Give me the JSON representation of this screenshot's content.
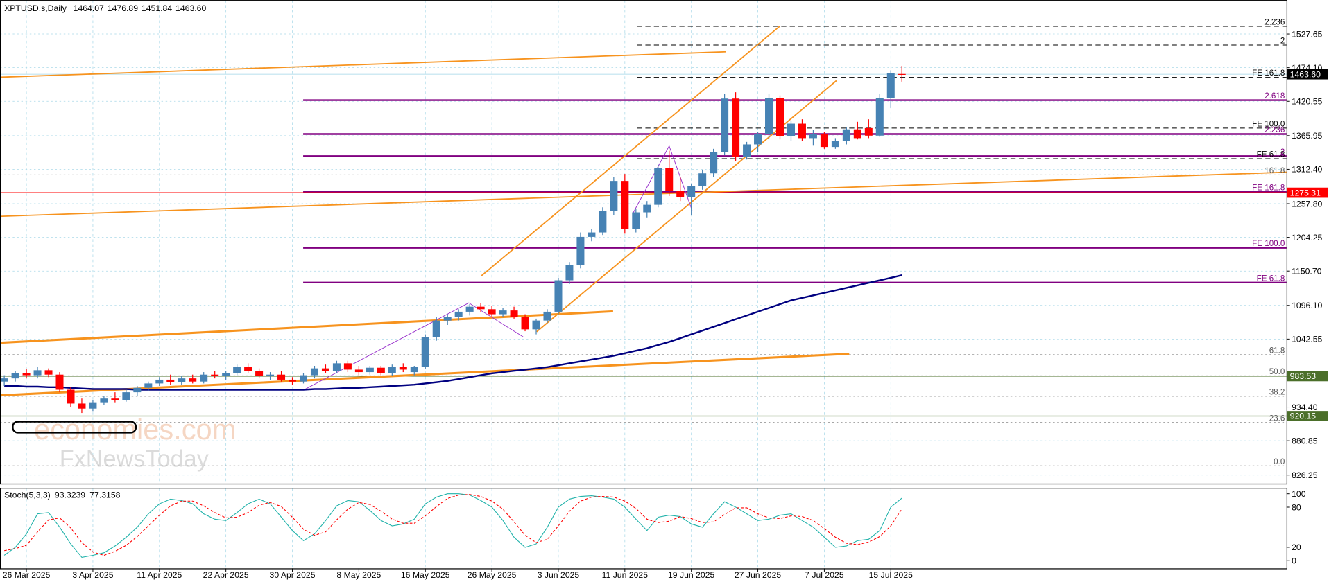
{
  "chart_data": {
    "type": "candlestick",
    "title": "XPTUSD.s,Daily",
    "categories": [
      null,
      null,
      "26 Mar 2025",
      null,
      null,
      null,
      null,
      null,
      "3 Apr 2025",
      null,
      null,
      null,
      null,
      null,
      "11 Apr 2025",
      null,
      null,
      null,
      null,
      null,
      "22 Apr 2025",
      null,
      null,
      null,
      null,
      null,
      "30 Apr 2025",
      null,
      null,
      null,
      null,
      null,
      "8 May 2025",
      null,
      null,
      null,
      null,
      null,
      "16 May 2025",
      null,
      null,
      null,
      null,
      null,
      "26 May 2025",
      null,
      null,
      null,
      null,
      null,
      "3 Jun 2025",
      null,
      null,
      null,
      null,
      null,
      "11 Jun 2025",
      null,
      null,
      null,
      null,
      null,
      "19 Jun 2025",
      null,
      null,
      null,
      null,
      null,
      "27 Jun 2025",
      null,
      null,
      null,
      null,
      null,
      "7 Jul 2025",
      null,
      null,
      null,
      null,
      null,
      "15 Jul 2025",
      null
    ],
    "candles": {
      "open": [
        975,
        980,
        988,
        985,
        993,
        986,
        962,
        940,
        932,
        942,
        948,
        945,
        958,
        965,
        972,
        978,
        974,
        980,
        975,
        986,
        984,
        988,
        998,
        992,
        984,
        986,
        978,
        975,
        985,
        996,
        992,
        1004,
        994,
        990,
        997,
        988,
        998,
        990,
        998,
        1046,
        1072,
        1078,
        1086,
        1094,
        1090,
        1082,
        1088,
        1078,
        1058,
        1072,
        1086,
        1136,
        1160,
        1205,
        1212,
        1246,
        1294,
        1218,
        1244,
        1256,
        1314,
        1278,
        1268,
        1286,
        1306,
        1340,
        1425,
        1332,
        1352,
        1368,
        1426,
        1365,
        1385,
        1362,
        1368,
        1348,
        1358,
        1376,
        1378,
        1366,
        1426,
        1464.07
      ],
      "high": [
        985,
        992,
        995,
        998,
        996,
        990,
        966,
        948,
        945,
        952,
        958,
        962,
        968,
        975,
        982,
        986,
        984,
        986,
        990,
        992,
        992,
        1002,
        1004,
        996,
        990,
        992,
        982,
        988,
        1000,
        1002,
        1008,
        1008,
        1000,
        1000,
        1000,
        1002,
        1004,
        1000,
        1050,
        1078,
        1082,
        1090,
        1098,
        1100,
        1095,
        1092,
        1094,
        1082,
        1075,
        1090,
        1140,
        1165,
        1212,
        1218,
        1252,
        1300,
        1305,
        1250,
        1262,
        1320,
        1342,
        1300,
        1290,
        1312,
        1345,
        1432,
        1435,
        1356,
        1372,
        1432,
        1430,
        1390,
        1392,
        1375,
        1372,
        1362,
        1380,
        1388,
        1392,
        1432,
        1470,
        1476.89
      ],
      "low": [
        968,
        975,
        980,
        980,
        982,
        958,
        935,
        925,
        928,
        938,
        942,
        943,
        952,
        960,
        968,
        970,
        970,
        972,
        972,
        980,
        978,
        985,
        988,
        980,
        978,
        975,
        970,
        972,
        980,
        988,
        988,
        990,
        985,
        986,
        985,
        984,
        990,
        985,
        995,
        1040,
        1065,
        1072,
        1080,
        1085,
        1078,
        1078,
        1075,
        1055,
        1050,
        1068,
        1082,
        1130,
        1155,
        1198,
        1208,
        1240,
        1210,
        1212,
        1236,
        1252,
        1270,
        1262,
        1240,
        1280,
        1300,
        1335,
        1325,
        1328,
        1340,
        1360,
        1360,
        1358,
        1358,
        1350,
        1345,
        1345,
        1352,
        1360,
        1362,
        1364,
        1410,
        1451.84
      ],
      "close": [
        980,
        988,
        985,
        993,
        986,
        962,
        940,
        932,
        942,
        948,
        945,
        958,
        965,
        972,
        978,
        974,
        980,
        975,
        986,
        984,
        988,
        998,
        992,
        984,
        986,
        978,
        975,
        985,
        996,
        992,
        1004,
        994,
        990,
        997,
        988,
        998,
        994,
        998,
        1046,
        1072,
        1078,
        1086,
        1094,
        1090,
        1082,
        1088,
        1078,
        1058,
        1072,
        1086,
        1136,
        1160,
        1205,
        1212,
        1246,
        1294,
        1218,
        1244,
        1256,
        1314,
        1278,
        1268,
        1286,
        1306,
        1340,
        1425,
        1332,
        1352,
        1368,
        1426,
        1365,
        1385,
        1362,
        1368,
        1348,
        1358,
        1376,
        1362,
        1366,
        1426,
        1466,
        {
          "value": 1463.6,
          "label": "1463.60"
        }
      ]
    },
    "up_color": "#4682b4",
    "down_color": "#ff0000",
    "ylim": [
      812.8,
      1581.6
    ],
    "yticks": [
      1527.65,
      {
        "value": 1474.1,
        "label": "1474.10"
      },
      1420.55,
      1365.95,
      {
        "value": 1312.4,
        "label": "1312.40"
      },
      {
        "value": 1257.8,
        "label": "1257.80"
      },
      1204.25,
      {
        "value": 1150.7,
        "label": "1150.70"
      },
      {
        "value": 1096.1,
        "label": "1096.10"
      },
      1042.55,
      {
        "value": 934.4,
        "label": "934.40"
      },
      880.85,
      826.25
    ],
    "grid": true,
    "ma": {
      "color": "#000080",
      "values": [
        968,
        968,
        967,
        967,
        966,
        966,
        965,
        964,
        963,
        963,
        963,
        963,
        962,
        962,
        962,
        962,
        962,
        962,
        962,
        962,
        962,
        962,
        962,
        962,
        962,
        962,
        962,
        962,
        963,
        963,
        964,
        965,
        965,
        966,
        967,
        968,
        969,
        970,
        972,
        974,
        976,
        979,
        982,
        985,
        988,
        990,
        992,
        994,
        996,
        998,
        1001,
        1004,
        1007,
        1010,
        1013,
        1016,
        1020,
        1024,
        1028,
        1033,
        1038,
        1044,
        1050,
        1056,
        1062,
        1068,
        1074,
        1080,
        1086,
        1092,
        1098,
        1104,
        1108,
        1112,
        1116,
        1120,
        1124,
        1128,
        1132,
        1136,
        1140,
        1144
      ]
    },
    "price_labels": [
      {
        "value": 1463.6,
        "label": "1463.60",
        "color": "#000000"
      },
      {
        "value": 1275.31,
        "color": "#ff0000"
      },
      {
        "value": 983.53,
        "color": "#4b6f2a"
      },
      {
        "value": 920.15,
        "color": "#4b6f2a"
      }
    ],
    "levels": [
      {
        "label": "2.236",
        "value": 1539.8,
        "style": "dashed"
      },
      {
        "label": "2",
        "value": 1510.1,
        "style": "dashed"
      },
      {
        "label": "FE 161.8",
        "value": 1458.9,
        "style": "dashed"
      },
      {
        "label": "FE 100.0",
        "value": 1378.0,
        "style": "dashed"
      },
      {
        "label": "FE 61.8",
        "value": 1329.4,
        "style": "dashed"
      },
      {
        "label": "2.618",
        "value": 1422.4,
        "style": "purple"
      },
      {
        "label": "2.236",
        "value": 1368.5,
        "style": "purple"
      },
      {
        "label": "2",
        "value": 1333.4,
        "style": "purple"
      },
      {
        "label": "FE 161.8",
        "value": 1276.8,
        "style": "purple"
      },
      {
        "label": "FE 100.0",
        "value": 1187.7,
        "style": "purple"
      },
      {
        "label": "FE 61.8",
        "value": 1132.4,
        "style": "purple"
      },
      {
        "label": "161.8",
        "value": 1303.7,
        "style": "dotted"
      },
      {
        "label": "61.8",
        "value": 1017.8,
        "style": "dotted"
      },
      {
        "label": "50.0",
        "value": 984.1,
        "style": "dotted"
      },
      {
        "label": "38.2",
        "value": 951.7,
        "style": "dotted"
      },
      {
        "label": "23.6",
        "value": 909.9,
        "style": "dotted"
      },
      {
        "label": "0.0",
        "value": 841.1,
        "style": "dotted"
      }
    ],
    "watermark": [
      "economies.com",
      "FxNewsToday"
    ],
    "stochastic": {
      "title": "Stoch(5,3,3)",
      "ylim": [
        -11.5,
        107.7
      ],
      "yticks": [
        100,
        80,
        20,
        0
      ],
      "series": [
        {
          "color": "#20b2aa",
          "dash": false,
          "values": [
            8,
            20,
            40,
            70,
            72,
            50,
            25,
            5,
            8,
            12,
            22,
            35,
            50,
            70,
            85,
            92,
            90,
            85,
            70,
            62,
            60,
            72,
            85,
            92,
            85,
            65,
            45,
            30,
            40,
            60,
            82,
            90,
            88,
            75,
            60,
            52,
            55,
            62,
            85,
            95,
            100,
            100,
            98,
            90,
            80,
            60,
            35,
            20,
            25,
            50,
            80,
            92,
            96,
            97,
            95,
            92,
            80,
            62,
            45,
            65,
            68,
            66,
            55,
            50,
            70,
            88,
            80,
            70,
            60,
            62,
            68,
            70,
            60,
            50,
            35,
            20,
            22,
            30,
            32,
            45,
            80,
            93.3239
          ]
        },
        {
          "color": "#ff0000",
          "dash": true,
          "values": [
            15,
            18,
            23,
            43,
            61,
            64,
            49,
            27,
            13,
            8,
            14,
            23,
            36,
            52,
            68,
            82,
            89,
            89,
            82,
            72,
            64,
            65,
            72,
            83,
            87,
            81,
            65,
            47,
            38,
            43,
            61,
            77,
            87,
            84,
            74,
            62,
            56,
            56,
            67,
            81,
            93,
            98,
            99,
            96,
            89,
            77,
            58,
            38,
            27,
            32,
            52,
            74,
            89,
            95,
            96,
            95,
            89,
            78,
            62,
            57,
            59,
            66,
            63,
            57,
            58,
            69,
            79,
            79,
            70,
            64,
            63,
            67,
            66,
            60,
            48,
            35,
            26,
            24,
            28,
            36,
            52,
            77.3158
          ]
        }
      ]
    }
  }
}
